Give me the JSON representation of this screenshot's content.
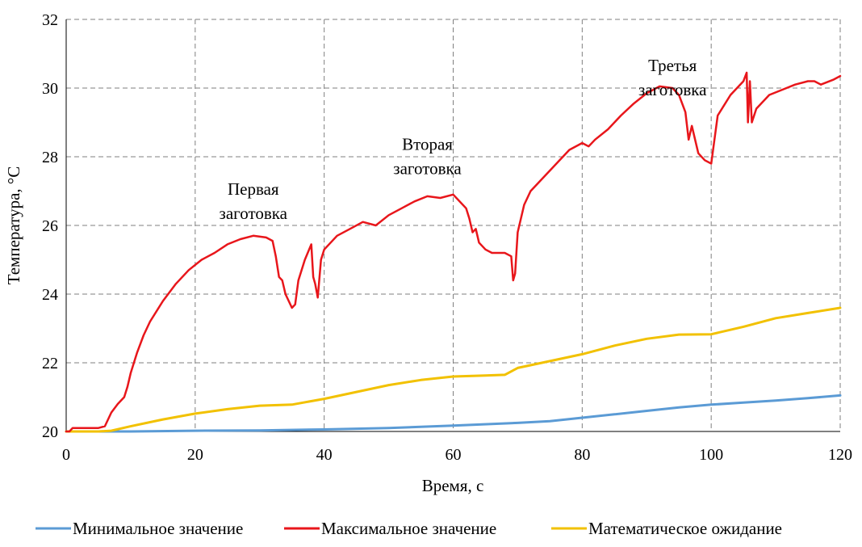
{
  "chart_data": {
    "type": "line",
    "xlabel": "Время, с",
    "ylabel": "Температура, °C",
    "xlim": [
      0,
      120
    ],
    "ylim": [
      20,
      32
    ],
    "xticks": [
      "0",
      "20",
      "40",
      "60",
      "80",
      "100",
      "120"
    ],
    "yticks": [
      "20",
      "22",
      "24",
      "26",
      "28",
      "30",
      "32"
    ],
    "grid": true,
    "legend_position": "bottom",
    "annotations": [
      {
        "lines": [
          "Первая",
          "заготовка"
        ],
        "x": 29,
        "y": 26.9
      },
      {
        "lines": [
          "Вторая",
          "заготовка"
        ],
        "x": 56,
        "y": 28.2
      },
      {
        "lines": [
          "Третья",
          "заготовка"
        ],
        "x": 94,
        "y": 30.5
      }
    ],
    "series": [
      {
        "name": "Минимальное значение",
        "color": "#5b9bd5",
        "x": [
          0,
          10,
          20,
          30,
          40,
          50,
          60,
          70,
          75,
          80,
          85,
          90,
          95,
          100,
          105,
          110,
          115,
          120
        ],
        "y": [
          20,
          20.0,
          20.02,
          20.03,
          20.06,
          20.1,
          20.17,
          20.25,
          20.3,
          20.4,
          20.5,
          20.6,
          20.7,
          20.78,
          20.84,
          20.9,
          20.97,
          21.05
        ]
      },
      {
        "name": "Максимальное значение",
        "color": "#e8161b",
        "x": [
          0,
          0.5,
          1,
          1.5,
          2,
          3,
          4,
          5,
          6,
          6.5,
          7,
          8,
          9,
          9.5,
          10,
          11,
          12,
          13,
          15,
          17,
          19,
          21,
          23,
          25,
          27,
          29,
          31,
          32,
          32.5,
          33,
          33.5,
          34,
          35,
          35.5,
          36,
          37,
          38,
          38.3,
          38.6,
          39,
          39.5,
          40,
          42,
          44,
          46,
          48,
          50,
          52,
          54,
          56,
          58,
          60,
          62,
          62.5,
          63,
          63.5,
          64,
          65,
          66,
          68,
          69,
          69.3,
          69.6,
          70,
          71,
          72,
          74,
          76,
          78,
          80,
          81,
          82,
          84,
          86,
          88,
          90,
          92,
          94,
          95,
          96,
          96.5,
          97,
          97.5,
          98,
          99,
          100,
          101,
          103,
          105,
          105.5,
          105.7,
          106,
          106.3,
          107,
          109,
          111,
          113,
          115,
          116,
          117,
          119,
          120
        ],
        "y": [
          20.0,
          20.0,
          20.1,
          20.1,
          20.1,
          20.1,
          20.1,
          20.1,
          20.15,
          20.35,
          20.55,
          20.8,
          21.0,
          21.3,
          21.7,
          22.3,
          22.8,
          23.2,
          23.8,
          24.3,
          24.7,
          25.0,
          25.2,
          25.45,
          25.6,
          25.7,
          25.65,
          25.55,
          25.1,
          24.5,
          24.4,
          24.0,
          23.6,
          23.7,
          24.4,
          25.0,
          25.45,
          24.5,
          24.3,
          23.9,
          25.0,
          25.3,
          25.7,
          25.9,
          26.1,
          26.0,
          26.3,
          26.5,
          26.7,
          26.85,
          26.8,
          26.9,
          26.5,
          26.2,
          25.8,
          25.9,
          25.5,
          25.3,
          25.2,
          25.2,
          25.1,
          24.4,
          24.6,
          25.8,
          26.6,
          27.0,
          27.4,
          27.8,
          28.2,
          28.4,
          28.3,
          28.5,
          28.8,
          29.2,
          29.55,
          29.85,
          30.05,
          30.0,
          29.8,
          29.3,
          28.5,
          28.9,
          28.5,
          28.1,
          27.9,
          27.8,
          29.2,
          29.8,
          30.2,
          30.45,
          29.0,
          30.2,
          29.0,
          29.4,
          29.8,
          29.95,
          30.1,
          30.2,
          30.2,
          30.1,
          30.25,
          30.35
        ]
      },
      {
        "name": "Математическое ожидание",
        "color": "#f2c100",
        "x": [
          0,
          5,
          7,
          10,
          15,
          20,
          25,
          30,
          35,
          40,
          45,
          50,
          55,
          60,
          65,
          68,
          70,
          75,
          80,
          85,
          90,
          95,
          100,
          105,
          110,
          115,
          120
        ],
        "y": [
          20.0,
          20.0,
          20.02,
          20.15,
          20.35,
          20.52,
          20.65,
          20.75,
          20.78,
          20.95,
          21.15,
          21.35,
          21.5,
          21.6,
          21.63,
          21.65,
          21.85,
          22.05,
          22.25,
          22.5,
          22.7,
          22.82,
          22.83,
          23.05,
          23.3,
          23.45,
          23.6
        ]
      }
    ]
  }
}
